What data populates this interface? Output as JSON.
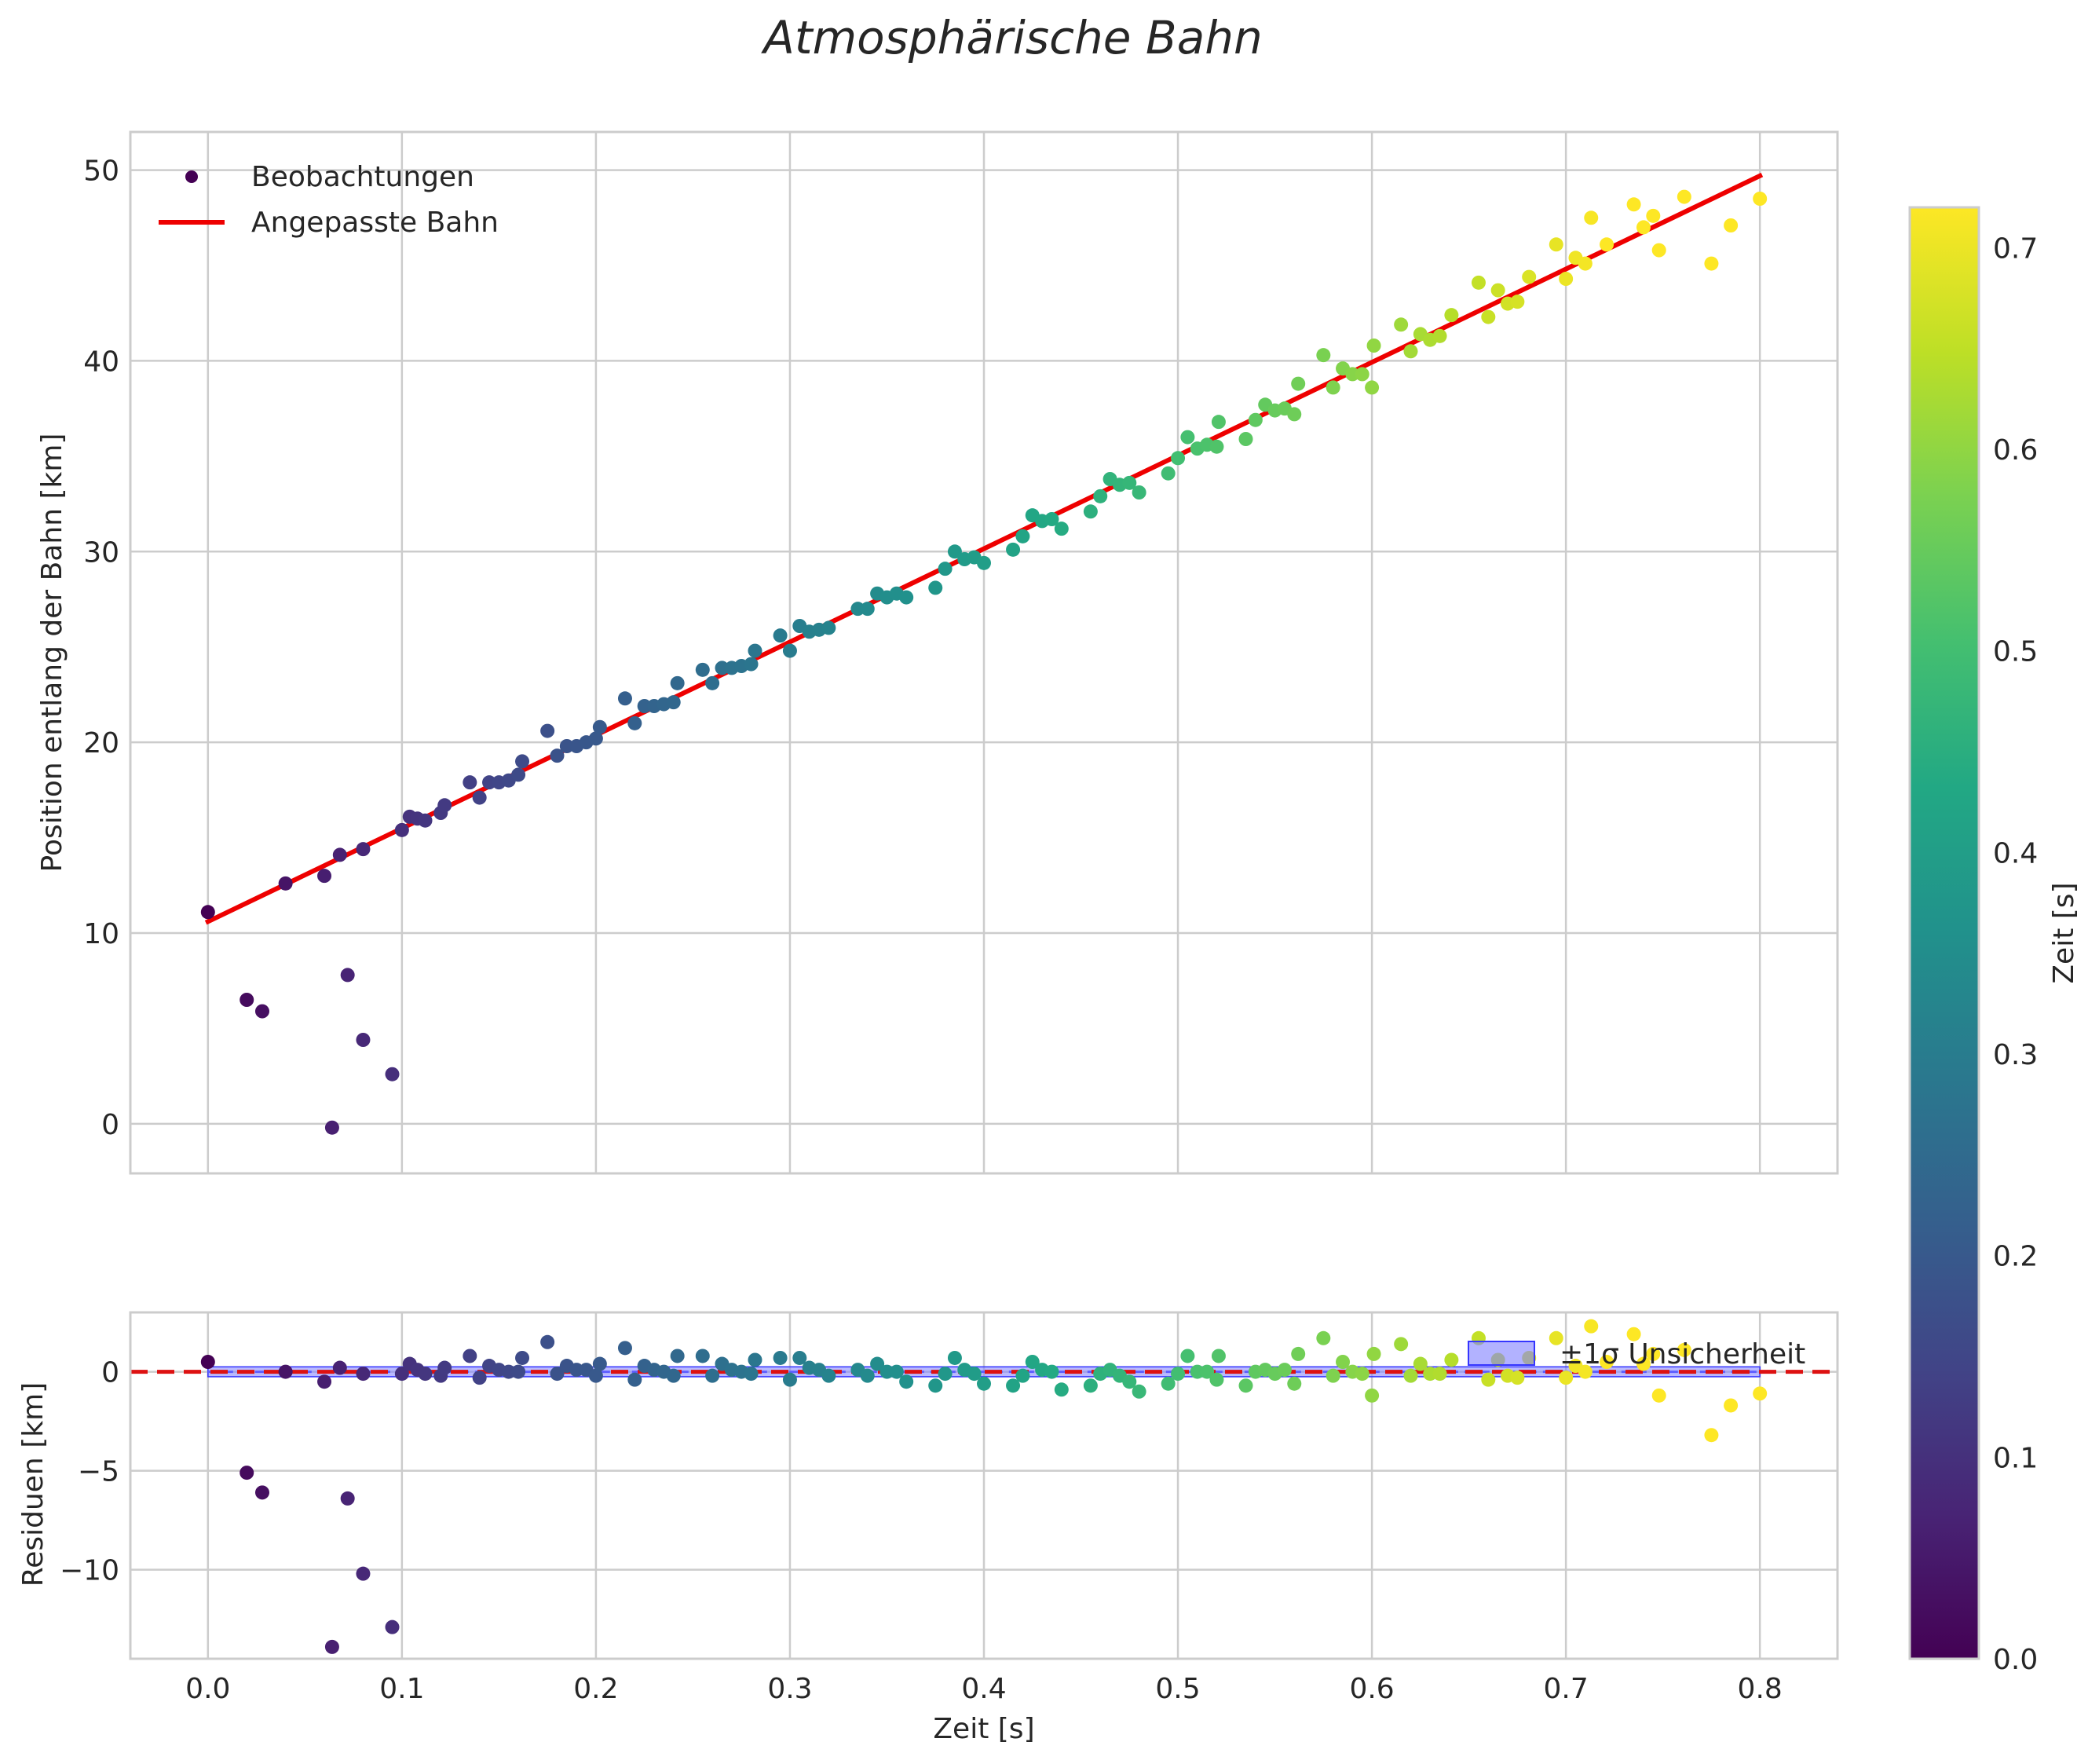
{
  "figure_title": "Atmosphärische Bahn",
  "colors": {
    "fit_line": "#ee0000",
    "zero_line": "#dd1111",
    "band_fill": "#7f7fff",
    "band_edge": "#3535ff",
    "band_center": "#5f5fff",
    "grid": "#cccccc",
    "frame": "#cccccc"
  },
  "colorbar": {
    "label": "Zeit [s]",
    "min": 0.0,
    "max": 0.72,
    "ticks": [
      0.0,
      0.1,
      0.2,
      0.3,
      0.4,
      0.5,
      0.6,
      0.7
    ],
    "tick_labels": [
      "0.0",
      "0.1",
      "0.2",
      "0.3",
      "0.4",
      "0.5",
      "0.6",
      "0.7"
    ],
    "colormap": "viridis"
  },
  "chart_data": [
    {
      "id": "trajectory",
      "type": "scatter",
      "title": "",
      "xlabel": "",
      "ylabel": "Position entlang der Bahn [km]",
      "xlim": [
        -0.04,
        0.84
      ],
      "ylim": [
        -2.6,
        52.0
      ],
      "xticks": [
        0.0,
        0.1,
        0.2,
        0.3,
        0.4,
        0.5,
        0.6,
        0.7,
        0.8
      ],
      "yticks": [
        0,
        10,
        20,
        30,
        40,
        50
      ],
      "ytick_labels": [
        "0",
        "10",
        "20",
        "30",
        "40",
        "50"
      ],
      "grid": true,
      "legend": {
        "position": "upper-left",
        "entries": [
          {
            "label": "Beobachtungen",
            "kind": "marker"
          },
          {
            "label": "Angepasste Bahn",
            "kind": "line"
          }
        ]
      },
      "fit_line": {
        "name": "Angepasste Bahn",
        "x": [
          0.0,
          0.8
        ],
        "y": [
          10.6,
          49.7
        ]
      },
      "series": [
        {
          "name": "Beobachtungen",
          "color_by": "x",
          "points": [
            [
              0.0,
              11.1
            ],
            [
              0.02,
              6.5
            ],
            [
              0.028,
              5.9
            ],
            [
              0.04,
              12.6
            ],
            [
              0.06,
              13.0
            ],
            [
              0.064,
              -0.2
            ],
            [
              0.068,
              14.1
            ],
            [
              0.072,
              7.8
            ],
            [
              0.08,
              4.4
            ],
            [
              0.08,
              14.4
            ],
            [
              0.095,
              2.6
            ],
            [
              0.1,
              15.4
            ],
            [
              0.104,
              16.1
            ],
            [
              0.108,
              16.0
            ],
            [
              0.112,
              15.9
            ],
            [
              0.12,
              16.3
            ],
            [
              0.122,
              16.7
            ],
            [
              0.135,
              17.9
            ],
            [
              0.14,
              17.1
            ],
            [
              0.145,
              17.9
            ],
            [
              0.15,
              17.9
            ],
            [
              0.155,
              18.0
            ],
            [
              0.16,
              18.3
            ],
            [
              0.162,
              19.0
            ],
            [
              0.175,
              20.6
            ],
            [
              0.18,
              19.3
            ],
            [
              0.185,
              19.8
            ],
            [
              0.19,
              19.8
            ],
            [
              0.195,
              20.0
            ],
            [
              0.2,
              20.2
            ],
            [
              0.202,
              20.8
            ],
            [
              0.215,
              22.3
            ],
            [
              0.22,
              21.0
            ],
            [
              0.225,
              21.9
            ],
            [
              0.23,
              21.9
            ],
            [
              0.235,
              22.0
            ],
            [
              0.24,
              22.1
            ],
            [
              0.242,
              23.1
            ],
            [
              0.255,
              23.8
            ],
            [
              0.26,
              23.1
            ],
            [
              0.265,
              23.9
            ],
            [
              0.27,
              23.9
            ],
            [
              0.275,
              24.0
            ],
            [
              0.28,
              24.1
            ],
            [
              0.282,
              24.8
            ],
            [
              0.295,
              25.6
            ],
            [
              0.3,
              24.8
            ],
            [
              0.305,
              26.1
            ],
            [
              0.31,
              25.8
            ],
            [
              0.315,
              25.9
            ],
            [
              0.32,
              26.0
            ],
            [
              0.335,
              27.0
            ],
            [
              0.34,
              27.0
            ],
            [
              0.345,
              27.8
            ],
            [
              0.35,
              27.6
            ],
            [
              0.355,
              27.8
            ],
            [
              0.36,
              27.6
            ],
            [
              0.375,
              28.1
            ],
            [
              0.38,
              29.1
            ],
            [
              0.385,
              30.0
            ],
            [
              0.39,
              29.6
            ],
            [
              0.395,
              29.7
            ],
            [
              0.4,
              29.4
            ],
            [
              0.415,
              30.1
            ],
            [
              0.42,
              30.8
            ],
            [
              0.425,
              31.9
            ],
            [
              0.43,
              31.6
            ],
            [
              0.435,
              31.7
            ],
            [
              0.44,
              31.2
            ],
            [
              0.455,
              32.1
            ],
            [
              0.46,
              32.9
            ],
            [
              0.465,
              33.8
            ],
            [
              0.47,
              33.5
            ],
            [
              0.475,
              33.6
            ],
            [
              0.48,
              33.1
            ],
            [
              0.495,
              34.1
            ],
            [
              0.5,
              34.9
            ],
            [
              0.505,
              36.0
            ],
            [
              0.51,
              35.4
            ],
            [
              0.515,
              35.6
            ],
            [
              0.52,
              35.5
            ],
            [
              0.521,
              36.8
            ],
            [
              0.535,
              35.9
            ],
            [
              0.54,
              36.9
            ],
            [
              0.545,
              37.7
            ],
            [
              0.55,
              37.4
            ],
            [
              0.555,
              37.5
            ],
            [
              0.56,
              37.2
            ],
            [
              0.562,
              38.8
            ],
            [
              0.575,
              40.3
            ],
            [
              0.58,
              38.6
            ],
            [
              0.585,
              39.6
            ],
            [
              0.59,
              39.3
            ],
            [
              0.595,
              39.3
            ],
            [
              0.6,
              38.6
            ],
            [
              0.601,
              40.8
            ],
            [
              0.615,
              41.9
            ],
            [
              0.62,
              40.5
            ],
            [
              0.625,
              41.4
            ],
            [
              0.63,
              41.1
            ],
            [
              0.635,
              41.3
            ],
            [
              0.641,
              42.4
            ],
            [
              0.655,
              44.1
            ],
            [
              0.66,
              42.3
            ],
            [
              0.665,
              43.7
            ],
            [
              0.67,
              43.0
            ],
            [
              0.675,
              43.1
            ],
            [
              0.681,
              44.4
            ],
            [
              0.695,
              46.1
            ],
            [
              0.7,
              44.3
            ],
            [
              0.705,
              45.4
            ],
            [
              0.71,
              45.1
            ],
            [
              0.713,
              47.5
            ],
            [
              0.721,
              46.1
            ],
            [
              0.735,
              48.2
            ],
            [
              0.74,
              47.0
            ],
            [
              0.745,
              47.6
            ],
            [
              0.748,
              45.8
            ],
            [
              0.761,
              48.6
            ],
            [
              0.775,
              45.1
            ],
            [
              0.785,
              47.1
            ],
            [
              0.8,
              48.5
            ]
          ]
        }
      ]
    },
    {
      "id": "residuals",
      "type": "scatter",
      "title": "",
      "xlabel": "Zeit [s]",
      "ylabel": "Residuen [km]",
      "xlim": [
        -0.04,
        0.84
      ],
      "ylim": [
        -14.5,
        3.0
      ],
      "xticks": [
        0.0,
        0.1,
        0.2,
        0.3,
        0.4,
        0.5,
        0.6,
        0.7,
        0.8
      ],
      "xtick_labels": [
        "0.0",
        "0.1",
        "0.2",
        "0.3",
        "0.4",
        "0.5",
        "0.6",
        "0.7",
        "0.8"
      ],
      "yticks": [
        0,
        -5,
        -10
      ],
      "ytick_labels": [
        "0",
        "−5",
        "−10"
      ],
      "grid": true,
      "zero_line": 0,
      "uncertainty_band": {
        "label": "±1σ Unsicherheit",
        "lower": -0.25,
        "upper": 0.25
      },
      "legend": {
        "position": "upper-right",
        "entries": [
          {
            "label": "±1σ Unsicherheit",
            "kind": "patch"
          }
        ]
      },
      "series": [
        {
          "name": "Residuen",
          "color_by": "x",
          "points": [
            [
              0.0,
              0.5
            ],
            [
              0.02,
              -5.1
            ],
            [
              0.028,
              -6.1
            ],
            [
              0.04,
              0.0
            ],
            [
              0.06,
              -0.5
            ],
            [
              0.064,
              -13.9
            ],
            [
              0.068,
              0.2
            ],
            [
              0.072,
              -6.4
            ],
            [
              0.08,
              -10.2
            ],
            [
              0.08,
              -0.1
            ],
            [
              0.095,
              -12.9
            ],
            [
              0.1,
              -0.1
            ],
            [
              0.104,
              0.4
            ],
            [
              0.108,
              0.1
            ],
            [
              0.112,
              -0.1
            ],
            [
              0.12,
              -0.2
            ],
            [
              0.122,
              0.2
            ],
            [
              0.135,
              0.8
            ],
            [
              0.14,
              -0.3
            ],
            [
              0.145,
              0.3
            ],
            [
              0.15,
              0.1
            ],
            [
              0.155,
              0.0
            ],
            [
              0.16,
              0.0
            ],
            [
              0.162,
              0.7
            ],
            [
              0.175,
              1.5
            ],
            [
              0.18,
              -0.1
            ],
            [
              0.185,
              0.3
            ],
            [
              0.19,
              0.1
            ],
            [
              0.195,
              0.1
            ],
            [
              0.2,
              -0.2
            ],
            [
              0.202,
              0.4
            ],
            [
              0.215,
              1.2
            ],
            [
              0.22,
              -0.4
            ],
            [
              0.225,
              0.3
            ],
            [
              0.23,
              0.1
            ],
            [
              0.235,
              0.0
            ],
            [
              0.24,
              -0.2
            ],
            [
              0.242,
              0.8
            ],
            [
              0.255,
              0.8
            ],
            [
              0.26,
              -0.2
            ],
            [
              0.265,
              0.4
            ],
            [
              0.27,
              0.1
            ],
            [
              0.275,
              0.0
            ],
            [
              0.28,
              -0.1
            ],
            [
              0.282,
              0.6
            ],
            [
              0.295,
              0.7
            ],
            [
              0.3,
              -0.4
            ],
            [
              0.305,
              0.7
            ],
            [
              0.31,
              0.2
            ],
            [
              0.315,
              0.1
            ],
            [
              0.32,
              -0.2
            ],
            [
              0.335,
              0.1
            ],
            [
              0.34,
              -0.2
            ],
            [
              0.345,
              0.4
            ],
            [
              0.35,
              0.0
            ],
            [
              0.355,
              0.0
            ],
            [
              0.36,
              -0.5
            ],
            [
              0.375,
              -0.7
            ],
            [
              0.38,
              -0.1
            ],
            [
              0.385,
              0.7
            ],
            [
              0.39,
              0.1
            ],
            [
              0.395,
              -0.1
            ],
            [
              0.4,
              -0.6
            ],
            [
              0.415,
              -0.7
            ],
            [
              0.42,
              -0.2
            ],
            [
              0.425,
              0.5
            ],
            [
              0.43,
              0.1
            ],
            [
              0.435,
              0.0
            ],
            [
              0.44,
              -0.9
            ],
            [
              0.455,
              -0.7
            ],
            [
              0.46,
              -0.1
            ],
            [
              0.465,
              0.1
            ],
            [
              0.47,
              -0.2
            ],
            [
              0.475,
              -0.5
            ],
            [
              0.48,
              -1.0
            ],
            [
              0.495,
              -0.6
            ],
            [
              0.5,
              -0.1
            ],
            [
              0.505,
              0.8
            ],
            [
              0.51,
              0.0
            ],
            [
              0.515,
              0.0
            ],
            [
              0.52,
              -0.4
            ],
            [
              0.521,
              0.8
            ],
            [
              0.535,
              -0.7
            ],
            [
              0.54,
              0.0
            ],
            [
              0.545,
              0.1
            ],
            [
              0.55,
              -0.1
            ],
            [
              0.555,
              0.1
            ],
            [
              0.56,
              -0.6
            ],
            [
              0.562,
              0.9
            ],
            [
              0.575,
              1.7
            ],
            [
              0.58,
              -0.2
            ],
            [
              0.585,
              0.5
            ],
            [
              0.59,
              0.0
            ],
            [
              0.595,
              -0.1
            ],
            [
              0.6,
              -1.2
            ],
            [
              0.601,
              0.9
            ],
            [
              0.615,
              1.4
            ],
            [
              0.62,
              -0.2
            ],
            [
              0.625,
              0.4
            ],
            [
              0.63,
              -0.1
            ],
            [
              0.635,
              -0.1
            ],
            [
              0.641,
              0.6
            ],
            [
              0.655,
              1.7
            ],
            [
              0.66,
              -0.4
            ],
            [
              0.665,
              0.6
            ],
            [
              0.67,
              -0.2
            ],
            [
              0.675,
              -0.3
            ],
            [
              0.681,
              0.7
            ],
            [
              0.695,
              1.7
            ],
            [
              0.7,
              -0.3
            ],
            [
              0.705,
              0.3
            ],
            [
              0.71,
              0.0
            ],
            [
              0.713,
              2.3
            ],
            [
              0.721,
              0.5
            ],
            [
              0.735,
              1.9
            ],
            [
              0.74,
              0.4
            ],
            [
              0.745,
              0.9
            ],
            [
              0.748,
              -1.2
            ],
            [
              0.761,
              1.1
            ],
            [
              0.775,
              -3.2
            ],
            [
              0.785,
              -1.7
            ],
            [
              0.8,
              -1.1
            ]
          ]
        }
      ]
    }
  ]
}
